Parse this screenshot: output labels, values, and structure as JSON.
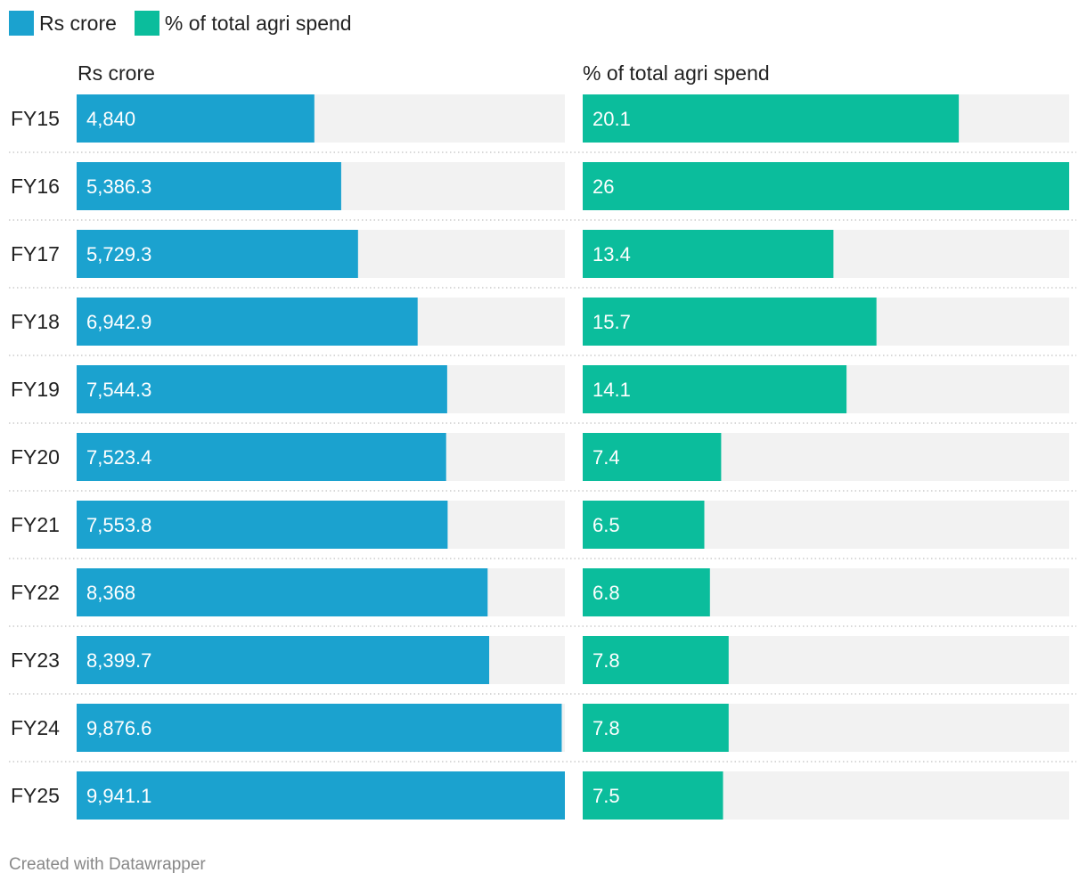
{
  "legend": {
    "series1": "Rs crore",
    "series2": "% of total agri spend"
  },
  "colors": {
    "series1": "#1ba2cf",
    "series2": "#0bbd9c",
    "track": "#f2f2f2",
    "separator": "#cccccc"
  },
  "footer": "Created with Datawrapper",
  "chart_data": {
    "type": "bar",
    "orientation": "horizontal",
    "categories": [
      "FY15",
      "FY16",
      "FY17",
      "FY18",
      "FY19",
      "FY20",
      "FY21",
      "FY22",
      "FY23",
      "FY24",
      "FY25"
    ],
    "series": [
      {
        "name": "Rs crore",
        "title": "Rs crore",
        "values": [
          4840,
          5386.3,
          5729.3,
          6942.9,
          7544.3,
          7523.4,
          7553.8,
          8368,
          8399.7,
          9876.6,
          9941.1
        ],
        "labels": [
          "4,840",
          "5,386.3",
          "5,729.3",
          "6,942.9",
          "7,544.3",
          "7,523.4",
          "7,553.8",
          "8,368",
          "8,399.7",
          "9,876.6",
          "9,941.1"
        ],
        "xlim": [
          0,
          9941.1
        ]
      },
      {
        "name": "% of total agri spend",
        "title": "% of total agri spend",
        "values": [
          20.1,
          26,
          13.4,
          15.7,
          14.1,
          7.4,
          6.5,
          6.8,
          7.8,
          7.8,
          7.5
        ],
        "labels": [
          "20.1",
          "26",
          "13.4",
          "15.7",
          "14.1",
          "7.4",
          "6.5",
          "6.8",
          "7.8",
          "7.8",
          "7.5"
        ],
        "xlim": [
          0,
          26
        ]
      }
    ]
  }
}
